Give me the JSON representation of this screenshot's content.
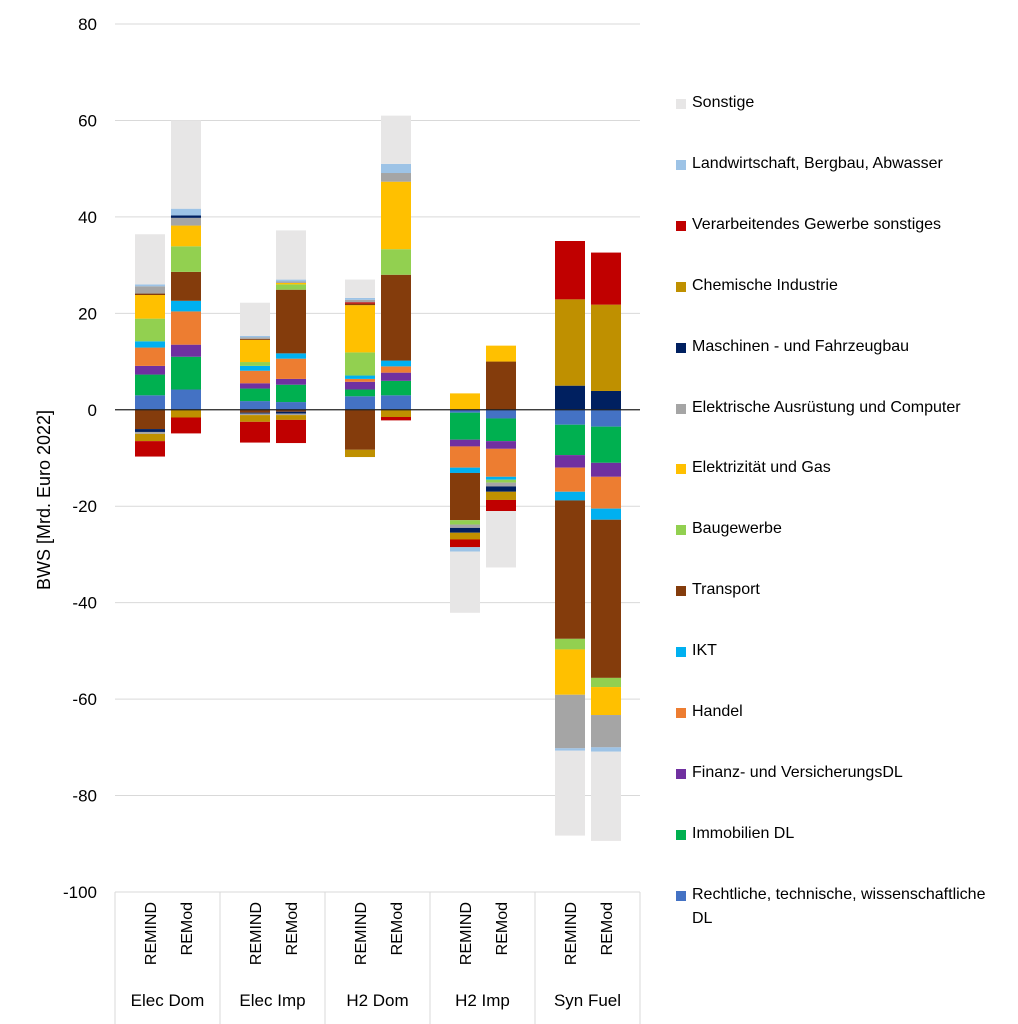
{
  "chart_data": {
    "type": "bar",
    "stacked": true,
    "ylabel": "BWS [Mrd. Euro 2022]",
    "ylim": [
      -100,
      80
    ],
    "yticks": [
      80,
      60,
      40,
      20,
      0,
      -20,
      -40,
      -60,
      -80,
      -100
    ],
    "grid": true,
    "legend_position": "right",
    "groups": [
      "Elec Dom",
      "Elec Imp",
      "H2 Dom",
      "H2 Imp",
      "Syn Fuel"
    ],
    "bar_labels": [
      "REMIND",
      "REMod"
    ],
    "legend": [
      {
        "name": "Sonstige",
        "color": "#E7E6E6"
      },
      {
        "name": "Landwirtschaft, Bergbau, Abwasser",
        "color": "#9DC3E6"
      },
      {
        "name": "Verarbeitendes Gewerbe sonstiges",
        "color": "#C00000"
      },
      {
        "name": "Chemische Industrie",
        "color": "#BF9000"
      },
      {
        "name": "Maschinen - und Fahrzeugbau",
        "color": "#002060"
      },
      {
        "name": "Elektrische Ausrüstung und Computer",
        "color": "#A5A5A5"
      },
      {
        "name": "Elektrizität und Gas",
        "color": "#FFC000"
      },
      {
        "name": "Baugewerbe",
        "color": "#92D050"
      },
      {
        "name": "Transport",
        "color": "#843C0C"
      },
      {
        "name": "IKT",
        "color": "#00B0F0"
      },
      {
        "name": "Handel",
        "color": "#ED7D31"
      },
      {
        "name": "Finanz- und VersicherungsDL",
        "color": "#7030A0"
      },
      {
        "name": "Immobilien DL",
        "color": "#00B050"
      },
      {
        "name": "Rechtliche, technische, wissenschaftliche DL",
        "color": "#4472C4"
      }
    ],
    "bars": [
      {
        "group": "Elec Dom",
        "label": "REMIND",
        "pos": [
          [
            "Rechtliche, technische, wissenschaftliche DL",
            3.0
          ],
          [
            "Immobilien DL",
            4.3
          ],
          [
            "Finanz- und VersicherungsDL",
            1.8
          ],
          [
            "Handel",
            3.8
          ],
          [
            "IKT",
            1.3
          ],
          [
            "Baugewerbe",
            4.7
          ],
          [
            "Elektrizität und Gas",
            4.9
          ],
          [
            "Transport",
            0.3
          ],
          [
            "Elektrische Ausrüstung und Computer",
            1.5
          ],
          [
            "Landwirtschaft, Bergbau, Abwasser",
            0.4
          ],
          [
            "Sonstige",
            10.4
          ]
        ],
        "neg": [
          [
            "Transport",
            -4.0
          ],
          [
            "Maschinen - und Fahrzeugbau",
            -0.6
          ],
          [
            "Elektrische Ausrüstung und Computer",
            -0.4
          ],
          [
            "Chemische Industrie",
            -1.5
          ],
          [
            "Verarbeitendes Gewerbe sonstiges",
            -3.2
          ]
        ]
      },
      {
        "group": "Elec Dom",
        "label": "REMod",
        "pos": [
          [
            "Rechtliche, technische, wissenschaftliche DL",
            4.2
          ],
          [
            "Immobilien DL",
            6.8
          ],
          [
            "Finanz- und VersicherungsDL",
            2.5
          ],
          [
            "Handel",
            6.9
          ],
          [
            "IKT",
            2.2
          ],
          [
            "Transport",
            6.0
          ],
          [
            "Baugewerbe",
            5.3
          ],
          [
            "Elektrizität und Gas",
            4.3
          ],
          [
            "Elektrische Ausrüstung und Computer",
            1.6
          ],
          [
            "Maschinen - und Fahrzeugbau",
            0.5
          ],
          [
            "Landwirtschaft, Bergbau, Abwasser",
            1.4
          ],
          [
            "Sonstige",
            18.3
          ]
        ],
        "neg": [
          [
            "Chemische Industrie",
            -1.6
          ],
          [
            "Verarbeitendes Gewerbe sonstiges",
            -3.3
          ]
        ]
      },
      {
        "group": "Elec Imp",
        "label": "REMIND",
        "pos": [
          [
            "Rechtliche, technische, wissenschaftliche DL",
            1.8
          ],
          [
            "Immobilien DL",
            2.6
          ],
          [
            "Finanz- und VersicherungsDL",
            1.1
          ],
          [
            "Handel",
            2.6
          ],
          [
            "IKT",
            1.0
          ],
          [
            "Baugewerbe",
            0.8
          ],
          [
            "Elektrizität und Gas",
            4.6
          ],
          [
            "Transport",
            0.2
          ],
          [
            "Elektrische Ausrüstung und Computer",
            0.3
          ],
          [
            "Landwirtschaft, Bergbau, Abwasser",
            0.3
          ],
          [
            "Sonstige",
            6.9
          ]
        ],
        "neg": [
          [
            "Transport",
            -0.6
          ],
          [
            "Maschinen - und Fahrzeugbau",
            -0.2
          ],
          [
            "Elektrische Ausrüstung und Computer",
            -0.3
          ],
          [
            "Chemische Industrie",
            -1.4
          ],
          [
            "Verarbeitendes Gewerbe sonstiges",
            -4.3
          ]
        ]
      },
      {
        "group": "Elec Imp",
        "label": "REMod",
        "pos": [
          [
            "Rechtliche, technische, wissenschaftliche DL",
            1.6
          ],
          [
            "Immobilien DL",
            3.6
          ],
          [
            "Finanz- und VersicherungsDL",
            1.2
          ],
          [
            "Handel",
            4.2
          ],
          [
            "IKT",
            1.1
          ],
          [
            "Transport",
            13.2
          ],
          [
            "Baugewerbe",
            1.1
          ],
          [
            "Elektrizität und Gas",
            0.3
          ],
          [
            "Elektrische Ausrüstung und Computer",
            0.3
          ],
          [
            "Landwirtschaft, Bergbau, Abwasser",
            0.4
          ],
          [
            "Sonstige",
            10.2
          ]
        ],
        "neg": [
          [
            "Transport",
            -0.4
          ],
          [
            "Maschinen - und Fahrzeugbau",
            -0.4
          ],
          [
            "Elektrische Ausrüstung und Computer",
            -0.3
          ],
          [
            "Chemische Industrie",
            -1.0
          ],
          [
            "Verarbeitendes Gewerbe sonstiges",
            -4.8
          ]
        ]
      },
      {
        "group": "H2 Dom",
        "label": "REMIND",
        "pos": [
          [
            "Rechtliche, technische, wissenschaftliche DL",
            2.8
          ],
          [
            "Immobilien DL",
            1.4
          ],
          [
            "Finanz- und VersicherungsDL",
            1.6
          ],
          [
            "Handel",
            0.6
          ],
          [
            "IKT",
            0.7
          ],
          [
            "Baugewerbe",
            4.8
          ],
          [
            "Elektrizität und Gas",
            9.8
          ],
          [
            "Transport",
            0.3
          ],
          [
            "Verarbeitendes Gewerbe sonstiges",
            0.3
          ],
          [
            "Elektrische Ausrüstung und Computer",
            0.5
          ],
          [
            "Landwirtschaft, Bergbau, Abwasser",
            0.4
          ],
          [
            "Sonstige",
            3.8
          ]
        ],
        "neg": [
          [
            "Transport",
            -8.3
          ],
          [
            "Chemische Industrie",
            -1.5
          ]
        ]
      },
      {
        "group": "H2 Dom",
        "label": "REMod",
        "pos": [
          [
            "Rechtliche, technische, wissenschaftliche DL",
            3.0
          ],
          [
            "Immobilien DL",
            3.0
          ],
          [
            "Finanz- und VersicherungsDL",
            1.7
          ],
          [
            "Handel",
            1.3
          ],
          [
            "IKT",
            1.2
          ],
          [
            "Transport",
            17.8
          ],
          [
            "Baugewerbe",
            5.3
          ],
          [
            "Elektrizität und Gas",
            14.0
          ],
          [
            "Elektrische Ausrüstung und Computer",
            1.8
          ],
          [
            "Landwirtschaft, Bergbau, Abwasser",
            1.9
          ],
          [
            "Sonstige",
            10.0
          ]
        ],
        "neg": [
          [
            "Chemische Industrie",
            -1.5
          ],
          [
            "Verarbeitendes Gewerbe sonstiges",
            -0.7
          ]
        ]
      },
      {
        "group": "H2 Imp",
        "label": "REMIND",
        "pos": [
          [
            "Elektrizität und Gas",
            3.4
          ]
        ],
        "neg": [
          [
            "Rechtliche, technische, wissenschaftliche DL",
            -0.6
          ],
          [
            "Immobilien DL",
            -5.6
          ],
          [
            "Finanz- und VersicherungsDL",
            -1.4
          ],
          [
            "Handel",
            -4.4
          ],
          [
            "IKT",
            -1.1
          ],
          [
            "Transport",
            -9.8
          ],
          [
            "Baugewerbe",
            -0.9
          ],
          [
            "Elektrische Ausrüstung und Computer",
            -0.7
          ],
          [
            "Maschinen - und Fahrzeugbau",
            -1.0
          ],
          [
            "Chemische Industrie",
            -1.4
          ],
          [
            "Verarbeitendes Gewerbe sonstiges",
            -1.6
          ],
          [
            "Landwirtschaft, Bergbau, Abwasser",
            -0.9
          ],
          [
            "Sonstige",
            -12.7
          ]
        ]
      },
      {
        "group": "H2 Imp",
        "label": "REMod",
        "pos": [
          [
            "Transport",
            10.0
          ],
          [
            "Elektrizität und Gas",
            3.3
          ]
        ],
        "neg": [
          [
            "Rechtliche, technische, wissenschaftliche DL",
            -1.8
          ],
          [
            "Immobilien DL",
            -4.7
          ],
          [
            "Finanz- und VersicherungsDL",
            -1.6
          ],
          [
            "Handel",
            -5.8
          ],
          [
            "IKT",
            -0.6
          ],
          [
            "Baugewerbe",
            -0.6
          ],
          [
            "Elektrische Ausrüstung und Computer",
            -0.8
          ],
          [
            "Maschinen - und Fahrzeugbau",
            -1.1
          ],
          [
            "Chemische Industrie",
            -1.7
          ],
          [
            "Verarbeitendes Gewerbe sonstiges",
            -2.3
          ],
          [
            "Sonstige",
            -11.7
          ]
        ]
      },
      {
        "group": "Syn Fuel",
        "label": "REMIND",
        "pos": [
          [
            "Maschinen - und Fahrzeugbau",
            5.0
          ],
          [
            "Chemische Industrie",
            17.9
          ],
          [
            "Verarbeitendes Gewerbe sonstiges",
            12.1
          ]
        ],
        "neg": [
          [
            "Rechtliche, technische, wissenschaftliche DL",
            -3.1
          ],
          [
            "Immobilien DL",
            -6.3
          ],
          [
            "Finanz- und VersicherungsDL",
            -2.6
          ],
          [
            "Handel",
            -5.0
          ],
          [
            "IKT",
            -1.8
          ],
          [
            "Transport",
            -28.7
          ],
          [
            "Baugewerbe",
            -2.2
          ],
          [
            "Elektrizität und Gas",
            -9.4
          ],
          [
            "Elektrische Ausrüstung und Computer",
            -11.1
          ],
          [
            "Landwirtschaft, Bergbau, Abwasser",
            -0.5
          ],
          [
            "Sonstige",
            -17.6
          ]
        ]
      },
      {
        "group": "Syn Fuel",
        "label": "REMod",
        "pos": [
          [
            "Maschinen - und Fahrzeugbau",
            3.9
          ],
          [
            "Chemische Industrie",
            17.9
          ],
          [
            "Verarbeitendes Gewerbe sonstiges",
            10.8
          ]
        ],
        "neg": [
          [
            "Rechtliche, technische, wissenschaftliche DL",
            -3.5
          ],
          [
            "Immobilien DL",
            -7.5
          ],
          [
            "Finanz- und VersicherungsDL",
            -2.9
          ],
          [
            "Handel",
            -6.6
          ],
          [
            "IKT",
            -2.3
          ],
          [
            "Transport",
            -32.8
          ],
          [
            "Baugewerbe",
            -1.9
          ],
          [
            "Elektrizität und Gas",
            -5.8
          ],
          [
            "Elektrische Ausrüstung und Computer",
            -6.7
          ],
          [
            "Landwirtschaft, Bergbau, Abwasser",
            -0.9
          ],
          [
            "Sonstige",
            -18.5
          ]
        ]
      }
    ]
  }
}
